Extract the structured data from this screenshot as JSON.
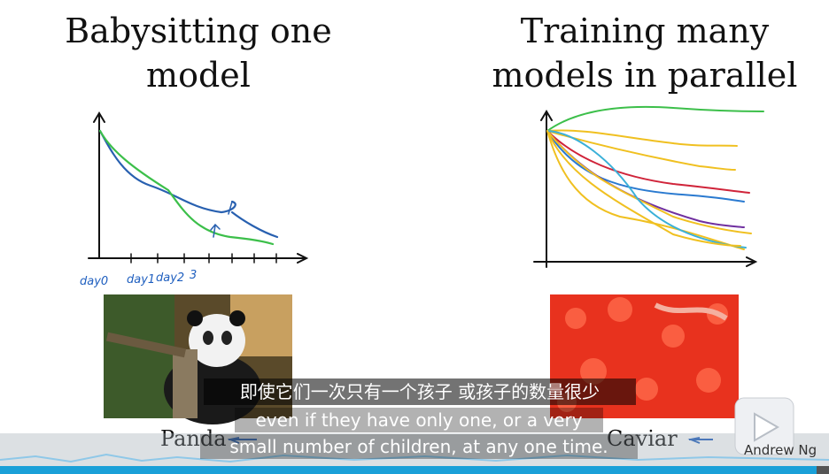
{
  "slide": {
    "left_title": [
      "Babysitting one",
      "model"
    ],
    "right_title": [
      "Training many",
      "models in parallel"
    ],
    "axis_notes": [
      "day0",
      "day1",
      "day2",
      "3"
    ],
    "left_caption": "Panda",
    "right_caption": "Caviar",
    "author": "Andrew Ng"
  },
  "subtitles": {
    "chinese": "即使它们一次只有一个孩子 或孩子的数量很少",
    "english": [
      "even if they have only one, or a very",
      "small number of children, at any one time."
    ]
  }
}
